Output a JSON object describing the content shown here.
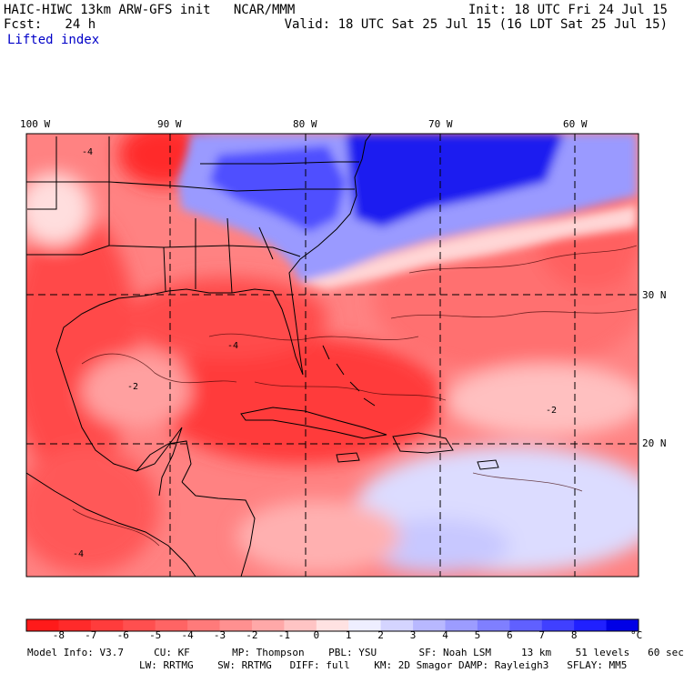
{
  "header": {
    "model_line": "HAIC-HIWC 13km ARW-GFS init   NCAR/MMM",
    "fcst_line": "Fcst:   24 h",
    "field_name": "Lifted index",
    "init_line": "Init: 18 UTC Fri 24 Jul 15",
    "valid_line": "Valid: 18 UTC Sat 25 Jul 15 (16 LDT Sat 25 Jul 15)"
  },
  "map": {
    "lon_labels": [
      "100 W",
      "90 W",
      "80 W",
      "70 W",
      "60 W"
    ],
    "lat_labels": [
      "30 N",
      "20 N"
    ],
    "contour_labels": [
      "-4",
      "-2",
      "-4",
      "-2",
      "-4"
    ]
  },
  "colorbar": {
    "ticks": [
      "-8",
      "-7",
      "-6",
      "-5",
      "-4",
      "-3",
      "-2",
      "-1",
      "0",
      "1",
      "2",
      "3",
      "4",
      "5",
      "6",
      "7",
      "8"
    ],
    "unit": "°C",
    "colors": [
      "#ff1a1a",
      "#ff2a2a",
      "#ff3c3c",
      "#ff4f4f",
      "#ff6464",
      "#ff7a7a",
      "#ff9090",
      "#ffa8a8",
      "#ffc4c4",
      "#ffe2e2",
      "#eeeeff",
      "#d4d4ff",
      "#b8b8ff",
      "#9c9cff",
      "#7f7fff",
      "#6060ff",
      "#4040ff",
      "#2020ff",
      "#0000e6"
    ]
  },
  "footer": {
    "line1": "Model Info: V3.7     CU: KF       MP: Thompson    PBL: YSU       SF: Noah LSM     13 km    51 levels   60 sec",
    "line2": "LW: RRTMG    SW: RRTMG   DIFF: full    KM: 2D Smagor DAMP: Rayleigh3   SFLAY: MM5"
  }
}
